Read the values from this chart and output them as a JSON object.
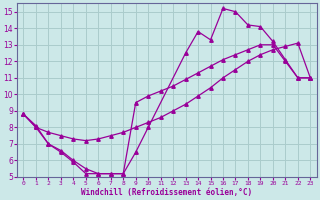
{
  "xlabel": "Windchill (Refroidissement éolien,°C)",
  "bg_color": "#cce8e8",
  "grid_color": "#aacccc",
  "line_color": "#990099",
  "spine_color": "#666699",
  "xlim": [
    -0.5,
    23.5
  ],
  "ylim": [
    5,
    15.5
  ],
  "yticks": [
    5,
    6,
    7,
    8,
    9,
    10,
    11,
    12,
    13,
    14,
    15
  ],
  "xticks": [
    0,
    1,
    2,
    3,
    4,
    5,
    6,
    7,
    8,
    9,
    10,
    11,
    12,
    13,
    14,
    15,
    16,
    17,
    18,
    19,
    20,
    21,
    22,
    23
  ],
  "curve1_x": [
    0,
    1,
    2,
    3,
    4,
    5,
    6,
    7,
    8,
    9,
    10,
    13,
    14,
    15,
    16,
    17,
    18,
    19,
    20,
    21,
    22,
    23
  ],
  "curve1_y": [
    8.8,
    8.1,
    7.0,
    6.6,
    6.0,
    5.5,
    5.2,
    5.2,
    5.2,
    6.5,
    8.0,
    12.5,
    13.8,
    13.3,
    15.2,
    15.0,
    14.2,
    14.1,
    13.2,
    12.1,
    11.0,
    11.0
  ],
  "curve2_x": [
    0,
    1,
    2,
    3,
    4,
    5,
    6,
    7,
    8,
    9,
    10,
    11,
    12,
    13,
    14,
    15,
    16,
    17,
    18,
    19,
    20,
    21,
    22,
    23
  ],
  "curve2_y": [
    8.8,
    8.0,
    7.7,
    7.5,
    7.3,
    7.2,
    7.3,
    7.5,
    7.7,
    8.0,
    8.3,
    8.6,
    9.0,
    9.4,
    9.9,
    10.4,
    11.0,
    11.5,
    12.0,
    12.4,
    12.7,
    12.9,
    13.1,
    11.0
  ],
  "curve3_x": [
    0,
    1,
    2,
    3,
    4,
    5,
    6,
    7,
    8,
    9,
    10,
    11,
    12,
    13,
    14,
    15,
    16,
    17,
    18,
    19,
    20,
    21,
    22,
    23
  ],
  "curve3_y": [
    8.8,
    8.0,
    7.0,
    6.5,
    5.9,
    5.2,
    5.2,
    5.2,
    5.2,
    9.5,
    9.9,
    10.2,
    10.5,
    10.9,
    11.3,
    11.7,
    12.1,
    12.4,
    12.7,
    13.0,
    13.0,
    12.0,
    11.0,
    11.0
  ]
}
